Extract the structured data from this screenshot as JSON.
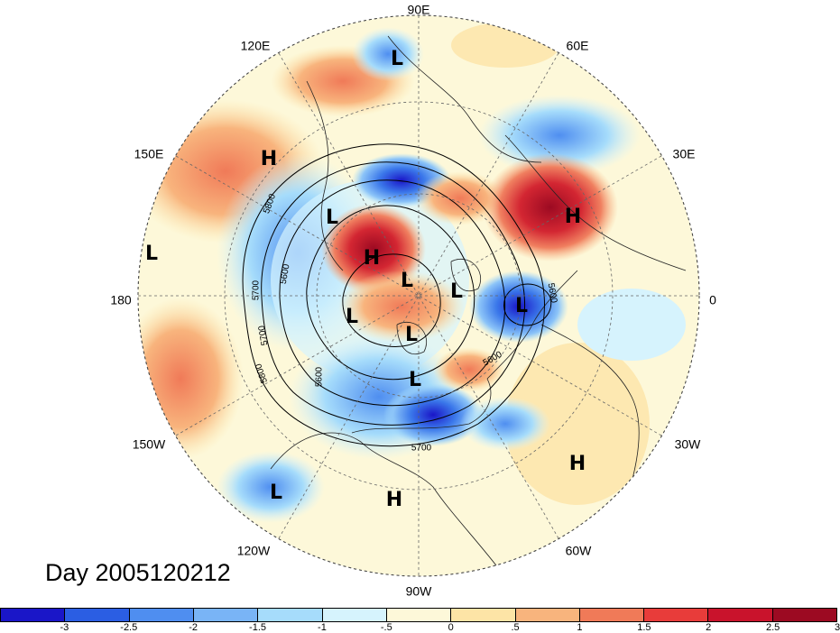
{
  "title": "Day 2005120212",
  "longitude_labels": [
    "90E",
    "60E",
    "30E",
    "0",
    "30W",
    "60W",
    "90W",
    "120W",
    "150W",
    "180",
    "150E",
    "120E"
  ],
  "pressure_centers": [
    {
      "label": "L"
    },
    {
      "label": "H"
    },
    {
      "label": "L"
    },
    {
      "label": "H"
    },
    {
      "label": "H"
    },
    {
      "label": "L"
    },
    {
      "label": "L"
    },
    {
      "label": "L"
    },
    {
      "label": "L"
    },
    {
      "label": "L"
    },
    {
      "label": "L"
    },
    {
      "label": "L"
    },
    {
      "label": "H"
    },
    {
      "label": "H"
    },
    {
      "label": "L"
    }
  ],
  "contour_labels": [
    "5800",
    "5600",
    "5700",
    "5700",
    "5800",
    "5600",
    "5600",
    "5700",
    "5600"
  ],
  "colorbar": {
    "colors": [
      "#1a16c8",
      "#2b5ee3",
      "#4f8ef0",
      "#79b4f6",
      "#a6dcfb",
      "#d6f3fd",
      "#fdf8d9",
      "#fde4a6",
      "#f8b47d",
      "#f07a58",
      "#e83c3a",
      "#c9132c",
      "#9c0a22"
    ],
    "tick_labels": [
      "-3",
      "-2.5",
      "-2",
      "-1.5",
      "-1",
      "-.5",
      "0",
      ".5",
      "1",
      "1.5",
      "2",
      "2.5",
      "3"
    ]
  }
}
